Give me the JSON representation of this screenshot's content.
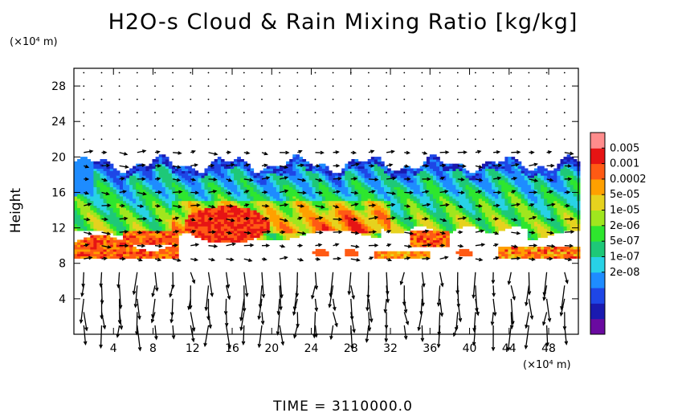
{
  "chart_data": {
    "type": "heatmap",
    "title": "H2O-s Cloud & Rain Mixing Ratio [kg/kg]",
    "ylabel": "Height",
    "x_unit": "(×10⁴ m)",
    "y_unit": "(×10⁴ m)",
    "footer": "TIME = 3110000.0",
    "xlim": [
      0,
      51
    ],
    "ylim": [
      0,
      30
    ],
    "x_ticks": [
      "4",
      "8",
      "12",
      "16",
      "20",
      "24",
      "28",
      "32",
      "36",
      "40",
      "44",
      "48"
    ],
    "y_ticks": [
      "4",
      "8",
      "12",
      "16",
      "20",
      "24",
      "28"
    ],
    "x_tick_values": [
      4,
      8,
      12,
      16,
      20,
      24,
      28,
      32,
      36,
      40,
      44,
      48
    ],
    "y_tick_values": [
      4,
      8,
      12,
      16,
      20,
      24,
      28
    ],
    "colorbar": {
      "labels": [
        "0.005",
        "0.001",
        "0.0002",
        "5e-05",
        "1e-05",
        "2e-06",
        "5e-07",
        "1e-07",
        "2e-08"
      ],
      "colors": [
        "#6a0aa0",
        "#1a1ab0",
        "#1e46e6",
        "#1e8cff",
        "#28d2e6",
        "#1ec878",
        "#2ee62e",
        "#a0e61e",
        "#e6d21e",
        "#ffa000",
        "#ff5a14",
        "#e61414",
        "#ff8c8c"
      ]
    },
    "regions": [
      {
        "name": "upper-cloud-layer",
        "level": "2e-06 to 1e-07",
        "x": [
          0,
          51
        ],
        "y": [
          13.5,
          20
        ]
      },
      {
        "name": "mid-cloud-layer",
        "level": "5e-05 to 1e-05",
        "x": [
          2,
          51
        ],
        "y": [
          11,
          16
        ]
      },
      {
        "name": "convective-core",
        "level": "0.005 to 0.001",
        "x": [
          12,
          20
        ],
        "y": [
          10.5,
          15
        ]
      },
      {
        "name": "lower-rain-band-west",
        "level": "0.001",
        "x": [
          0,
          10
        ],
        "y": [
          8.5,
          11
        ]
      },
      {
        "name": "lower-rain-band-east",
        "level": "0.001",
        "x": [
          34,
          51
        ],
        "y": [
          8.5,
          11
        ]
      }
    ],
    "wind_vectors": "arrow field over whole domain; near-calm dots above 20, strong mostly downward arrows below 8"
  }
}
